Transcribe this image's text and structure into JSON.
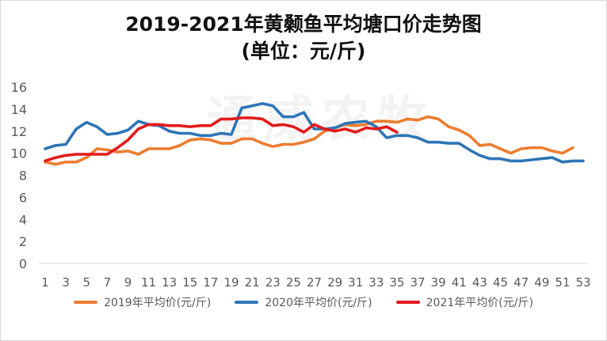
{
  "chart_data": {
    "type": "line",
    "title": "2019-2021年黄颡鱼平均塘口价走势图",
    "subtitle": "(单位：元/斤)",
    "watermark": "通威农牧",
    "xlabel": "",
    "ylabel": "",
    "x": [
      1,
      2,
      3,
      4,
      5,
      6,
      7,
      8,
      9,
      10,
      11,
      12,
      13,
      14,
      15,
      16,
      17,
      18,
      19,
      20,
      21,
      22,
      23,
      24,
      25,
      26,
      27,
      28,
      29,
      30,
      31,
      32,
      33,
      34,
      35,
      36,
      37,
      38,
      39,
      40,
      41,
      42,
      43,
      44,
      45,
      46,
      47,
      48,
      49,
      50,
      51,
      52,
      53
    ],
    "x_tick_labels": [
      "1",
      "3",
      "5",
      "7",
      "9",
      "11",
      "13",
      "15",
      "17",
      "19",
      "21",
      "23",
      "25",
      "27",
      "29",
      "31",
      "33",
      "35",
      "37",
      "39",
      "41",
      "43",
      "45",
      "47",
      "49",
      "51",
      "53"
    ],
    "y_tick_labels": [
      "0",
      "2",
      "4",
      "6",
      "8",
      "10",
      "12",
      "14",
      "16"
    ],
    "ylim": [
      0,
      16
    ],
    "xlim": [
      1,
      53
    ],
    "grid": false,
    "legend_position": "bottom",
    "series": [
      {
        "name": "2019年平均价(元/斤)",
        "color": "#ED7D31",
        "values": [
          9.2,
          9.0,
          9.2,
          9.2,
          9.6,
          10.4,
          10.3,
          10.1,
          10.2,
          9.9,
          10.4,
          10.4,
          10.4,
          10.7,
          11.2,
          11.3,
          11.2,
          10.9,
          10.9,
          11.3,
          11.3,
          10.9,
          10.6,
          10.8,
          10.8,
          11.0,
          11.3,
          12.0,
          12.3,
          12.6,
          12.5,
          12.6,
          12.9,
          12.9,
          12.8,
          13.1,
          13.0,
          13.3,
          13.1,
          12.4,
          12.1,
          11.6,
          10.7,
          10.8,
          10.4,
          10.0,
          10.4,
          10.5,
          10.5,
          10.2,
          10.0,
          10.5,
          null
        ]
      },
      {
        "name": "2020年平均价(元/斤)",
        "color": "#2E75B6",
        "values": [
          10.4,
          10.7,
          10.8,
          12.2,
          12.8,
          12.4,
          11.7,
          11.8,
          12.1,
          12.9,
          12.6,
          12.5,
          12.0,
          11.8,
          11.8,
          11.6,
          11.6,
          11.8,
          11.7,
          14.1,
          14.3,
          14.5,
          14.3,
          13.3,
          13.3,
          13.7,
          12.2,
          12.2,
          12.3,
          12.7,
          12.8,
          12.9,
          12.4,
          11.4,
          11.6,
          11.6,
          11.4,
          11.0,
          11.0,
          10.9,
          10.9,
          10.3,
          9.8,
          9.5,
          9.5,
          9.3,
          9.3,
          9.4,
          9.5,
          9.6,
          9.2,
          9.3,
          9.3
        ]
      },
      {
        "name": "2021年平均价(元/斤)",
        "color": "#E31B1B",
        "values": [
          9.3,
          9.6,
          9.8,
          9.9,
          9.9,
          9.9,
          9.9,
          10.5,
          11.2,
          12.2,
          12.6,
          12.6,
          12.5,
          12.5,
          12.4,
          12.5,
          12.5,
          13.1,
          13.1,
          13.2,
          13.2,
          13.1,
          12.5,
          12.6,
          12.4,
          11.9,
          12.6,
          12.2,
          12.0,
          12.2,
          11.9,
          12.3,
          12.2,
          12.4,
          11.9,
          null,
          null,
          null,
          null,
          null,
          null,
          null,
          null,
          null,
          null,
          null,
          null,
          null,
          null,
          null,
          null,
          null,
          null
        ]
      }
    ]
  }
}
